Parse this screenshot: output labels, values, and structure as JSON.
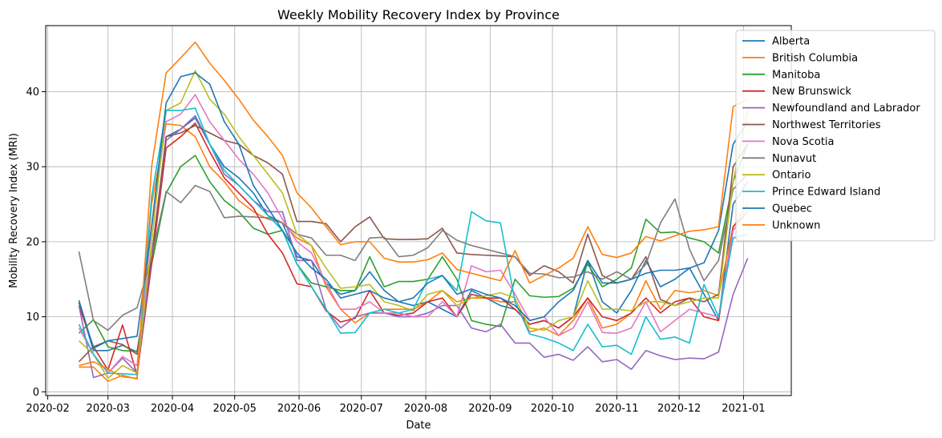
{
  "chart_data": {
    "type": "line",
    "title": "Weekly Mobility Recovery Index by Province",
    "xlabel": "Date",
    "ylabel": "Mobility Recovery Index (MRI)",
    "x_ticks": [
      "2020-02",
      "2020-03",
      "2020-04",
      "2020-05",
      "2020-06",
      "2020-07",
      "2020-08",
      "2020-09",
      "2020-10",
      "2020-11",
      "2020-12",
      "2021-01"
    ],
    "y_ticks": [
      0,
      10,
      20,
      30,
      40
    ],
    "xlim": [
      "2020-01-31",
      "2021-01-24"
    ],
    "ylim": [
      -0.5,
      48.8
    ],
    "grid": true,
    "legend": "top-right",
    "x": [
      "2020-02-16",
      "2020-02-23",
      "2020-03-01",
      "2020-03-08",
      "2020-03-15",
      "2020-03-22",
      "2020-03-29",
      "2020-04-05",
      "2020-04-12",
      "2020-04-19",
      "2020-04-26",
      "2020-05-03",
      "2020-05-10",
      "2020-05-17",
      "2020-05-24",
      "2020-05-31",
      "2020-06-07",
      "2020-06-14",
      "2020-06-21",
      "2020-06-28",
      "2020-07-05",
      "2020-07-12",
      "2020-07-19",
      "2020-07-26",
      "2020-08-02",
      "2020-08-09",
      "2020-08-16",
      "2020-08-23",
      "2020-08-30",
      "2020-09-06",
      "2020-09-13",
      "2020-09-20",
      "2020-09-27",
      "2020-10-04",
      "2020-10-11",
      "2020-10-18",
      "2020-10-25",
      "2020-11-01",
      "2020-11-08",
      "2020-11-15",
      "2020-11-22",
      "2020-11-29",
      "2020-12-06",
      "2020-12-13",
      "2020-12-20",
      "2020-12-27",
      "2021-01-03"
    ],
    "series": [
      {
        "name": "Alberta",
        "color": "#1f77b4",
        "values": [
          11.9,
          5.5,
          5.5,
          6.2,
          5.3,
          18.0,
          34.0,
          35.0,
          36.5,
          33.0,
          30.0,
          28.5,
          26.5,
          23.5,
          22.5,
          18.0,
          17.5,
          14.5,
          13.0,
          13.5,
          16.0,
          13.5,
          12.0,
          11.5,
          12.0,
          11.0,
          10.0,
          13.5,
          12.5,
          11.5,
          11.0,
          9.0,
          9.5,
          8.5,
          10.0,
          17.5,
          12.0,
          10.5,
          13.5,
          17.5,
          14.0,
          15.0,
          16.5,
          13.0,
          9.5,
          25.0,
          28.0
        ]
      },
      {
        "name": "British Columbia",
        "color": "#ff7f0e",
        "values": [
          3.3,
          3.3,
          1.4,
          2.2,
          1.7,
          25.0,
          35.7,
          35.5,
          34.0,
          30.0,
          28.0,
          25.5,
          24.0,
          23.0,
          22.5,
          20.5,
          19.5,
          14.0,
          11.0,
          9.2,
          10.5,
          11.0,
          11.0,
          11.0,
          12.0,
          13.5,
          12.0,
          12.5,
          12.5,
          12.0,
          12.0,
          8.0,
          8.5,
          7.5,
          9.5,
          12.5,
          8.5,
          9.0,
          10.5,
          14.8,
          11.0,
          13.5,
          13.2,
          13.5,
          12.8,
          22.0,
          25.0
        ]
      },
      {
        "name": "Manitoba",
        "color": "#2ca02c",
        "values": [
          7.8,
          9.6,
          6.0,
          5.5,
          5.4,
          17.0,
          26.5,
          30.0,
          31.5,
          28.0,
          25.5,
          24.0,
          21.8,
          21.0,
          21.5,
          17.0,
          14.5,
          14.0,
          13.5,
          13.5,
          18.0,
          14.0,
          14.7,
          14.7,
          15.0,
          18.0,
          15.0,
          9.5,
          9.0,
          8.7,
          15.0,
          12.8,
          12.6,
          12.7,
          13.8,
          17.0,
          14.0,
          15.0,
          16.5,
          23.0,
          21.2,
          21.3,
          20.5,
          20.0,
          18.5,
          28.0,
          33.0
        ]
      },
      {
        "name": "New Brunswick",
        "color": "#d62728",
        "values": [
          11.5,
          6.0,
          2.9,
          8.9,
          2.2,
          17.0,
          32.5,
          34.0,
          35.8,
          32.0,
          28.5,
          26.5,
          24.5,
          21.0,
          18.5,
          14.4,
          14.0,
          10.8,
          9.3,
          9.8,
          13.5,
          10.5,
          10.2,
          10.5,
          12.0,
          12.5,
          10.0,
          13.0,
          12.5,
          12.5,
          11.0,
          9.0,
          9.5,
          8.5,
          10.0,
          12.5,
          10.0,
          9.5,
          10.5,
          12.5,
          10.5,
          12.0,
          12.5,
          10.0,
          9.5,
          22.0,
          24.0
        ]
      },
      {
        "name": "Newfoundland and Labrador",
        "color": "#9467bd",
        "values": [
          11.5,
          1.9,
          2.5,
          4.5,
          2.5,
          18.0,
          33.5,
          35.0,
          36.8,
          33.0,
          29.0,
          27.5,
          25.5,
          24.0,
          24.0,
          17.5,
          17.5,
          11.0,
          8.5,
          10.0,
          10.5,
          10.5,
          10.0,
          10.0,
          10.5,
          11.5,
          11.5,
          8.5,
          8.0,
          9.0,
          6.5,
          6.5,
          4.6,
          5.0,
          4.2,
          6.0,
          4.0,
          4.3,
          3.0,
          5.5,
          4.8,
          4.3,
          4.5,
          4.4,
          5.3,
          13.0,
          17.8
        ]
      },
      {
        "name": "Northwest Territories",
        "color": "#8c564b",
        "values": [
          4.0,
          6.0,
          6.8,
          6.3,
          5.0,
          18.0,
          34.0,
          34.5,
          35.5,
          34.5,
          33.5,
          33.0,
          31.5,
          30.5,
          29.0,
          22.7,
          22.7,
          22.4,
          20.0,
          22.0,
          23.3,
          20.4,
          20.3,
          20.3,
          20.4,
          21.8,
          18.5,
          18.3,
          18.2,
          18.1,
          18.0,
          15.5,
          16.8,
          16.0,
          14.5,
          21.0,
          15.5,
          14.5,
          15.0,
          18.0,
          12.3,
          11.5,
          12.5,
          12.0,
          13.0,
          30.0,
          33.0
        ]
      },
      {
        "name": "Nova Scotia",
        "color": "#e377c2",
        "values": [
          8.5,
          5.0,
          2.5,
          4.7,
          3.5,
          22.0,
          36.0,
          37.0,
          39.6,
          36.0,
          33.5,
          31.0,
          29.0,
          26.5,
          23.0,
          20.0,
          18.5,
          14.5,
          11.0,
          11.0,
          12.0,
          10.5,
          10.5,
          10.0,
          10.0,
          12.0,
          10.0,
          16.8,
          16.0,
          16.2,
          13.0,
          9.5,
          10.0,
          7.5,
          8.5,
          12.0,
          7.9,
          7.8,
          8.5,
          12.0,
          8.0,
          9.5,
          11.0,
          10.5,
          10.0,
          21.5,
          24.0
        ]
      },
      {
        "name": "Nunavut",
        "color": "#7f7f7f",
        "values": [
          18.7,
          9.5,
          8.2,
          10.2,
          11.2,
          18.0,
          26.7,
          25.2,
          27.5,
          26.7,
          23.2,
          23.4,
          23.3,
          23.2,
          22.5,
          21.0,
          20.5,
          18.2,
          18.2,
          17.5,
          20.5,
          20.6,
          18.0,
          18.2,
          19.2,
          21.5,
          20.2,
          19.5,
          19.0,
          18.5,
          18.0,
          15.8,
          15.7,
          15.2,
          15.3,
          16.0,
          15.0,
          16.0,
          15.0,
          17.0,
          22.5,
          25.7,
          19.0,
          14.8,
          17.5,
          27.0,
          29.0
        ]
      },
      {
        "name": "Ontario",
        "color": "#bcbd22",
        "values": [
          6.8,
          5.0,
          1.8,
          3.5,
          2.5,
          20.0,
          37.5,
          38.5,
          42.8,
          39.0,
          37.0,
          34.0,
          31.5,
          29.0,
          26.5,
          21.0,
          19.5,
          16.5,
          13.8,
          14.0,
          14.3,
          12.0,
          11.5,
          10.8,
          13.0,
          13.5,
          11.5,
          12.5,
          12.8,
          13.2,
          12.5,
          8.5,
          8.2,
          9.5,
          10.0,
          14.8,
          11.0,
          11.0,
          10.8,
          12.0,
          12.0,
          11.5,
          12.0,
          12.5,
          12.5,
          28.0,
          37.5
        ]
      },
      {
        "name": "Prince Edward Island",
        "color": "#17becf",
        "values": [
          9.0,
          5.0,
          2.5,
          2.4,
          2.3,
          26.0,
          37.5,
          37.5,
          37.8,
          33.0,
          29.5,
          27.5,
          25.5,
          23.5,
          21.5,
          17.0,
          14.0,
          11.0,
          7.8,
          7.9,
          10.5,
          11.0,
          10.5,
          11.0,
          15.0,
          15.5,
          13.5,
          24.0,
          22.8,
          22.5,
          12.0,
          7.7,
          7.2,
          6.5,
          5.5,
          9.0,
          6.0,
          6.2,
          5.0,
          10.0,
          7.0,
          7.3,
          6.5,
          14.3,
          10.0,
          20.5,
          21.0
        ]
      },
      {
        "name": "Quebec",
        "color": "#1f77b4",
        "values": [
          12.2,
          5.8,
          6.8,
          7.1,
          7.4,
          22.0,
          38.5,
          42.0,
          42.5,
          41.0,
          36.0,
          33.0,
          27.5,
          24.5,
          21.5,
          18.5,
          16.5,
          15.0,
          12.5,
          13.0,
          13.5,
          12.5,
          12.0,
          12.5,
          14.5,
          15.5,
          13.0,
          13.7,
          13.0,
          12.5,
          11.5,
          9.5,
          10.0,
          12.0,
          13.5,
          17.5,
          14.5,
          14.5,
          15.0,
          15.8,
          16.2,
          16.2,
          16.5,
          17.2,
          21.5,
          33.0,
          36.0
        ]
      },
      {
        "name": "Unknown",
        "color": "#ff7f0e",
        "values": [
          3.5,
          4.0,
          3.0,
          2.0,
          1.8,
          30.0,
          42.5,
          44.5,
          46.6,
          43.8,
          41.5,
          39.0,
          36.2,
          34.0,
          31.5,
          26.5,
          24.5,
          22.0,
          19.6,
          20.0,
          20.0,
          17.8,
          17.3,
          17.3,
          17.6,
          18.5,
          16.3,
          15.8,
          15.3,
          14.8,
          18.8,
          14.5,
          15.5,
          16.5,
          17.8,
          22.0,
          18.3,
          17.9,
          18.5,
          20.7,
          20.1,
          20.8,
          21.4,
          21.6,
          22.0,
          38.0,
          39.0
        ]
      }
    ]
  }
}
